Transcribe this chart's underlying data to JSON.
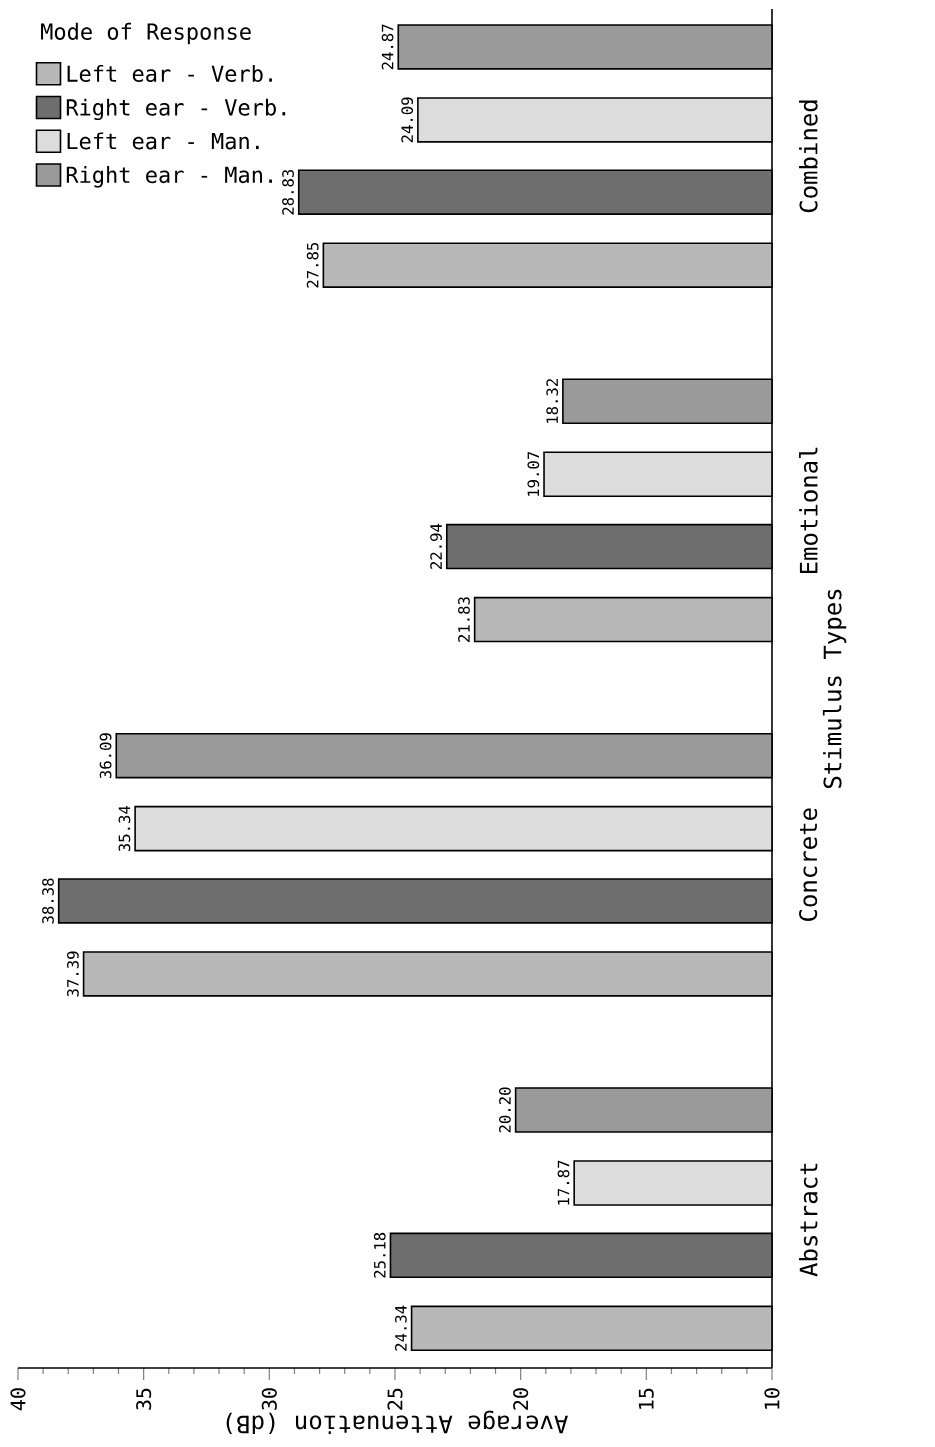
{
  "chart_data": {
    "type": "bar",
    "orientation": "horizontal",
    "xlabel": "Average Attenuation (dB)",
    "ylabel": "Stimulus Types",
    "legend_title": "Mode of Response",
    "categories": [
      "Combined",
      "Emotional",
      "Concrete",
      "Abstract"
    ],
    "series": [
      {
        "name": "Left ear - Verb.",
        "color": "#b8b8b8",
        "values": [
          27.85,
          21.83,
          37.39,
          24.34
        ],
        "value_labels": [
          "27.85",
          "21.83",
          "37.39",
          "24.34"
        ]
      },
      {
        "name": "Right ear - Verb.",
        "color": "#6e6e6e",
        "values": [
          28.83,
          22.94,
          38.38,
          25.18
        ],
        "value_labels": [
          "28.83",
          "22.94",
          "38.38",
          "25.18"
        ]
      },
      {
        "name": "Left ear - Man.",
        "color": "#dcdcdc",
        "values": [
          24.09,
          19.07,
          35.34,
          17.87
        ],
        "value_labels": [
          "24.09",
          "19.07",
          "35.34",
          "17.87"
        ]
      },
      {
        "name": "Right ear - Man.",
        "color": "#9a9a9a",
        "values": [
          24.87,
          18.32,
          36.09,
          20.2
        ],
        "value_labels": [
          "24.87",
          "18.32",
          "36.09",
          "20.20"
        ]
      }
    ],
    "xlim": [
      40,
      10
    ],
    "xticks": [
      40,
      35,
      30,
      25,
      20,
      15,
      10
    ],
    "legend": "top left",
    "grid": false
  }
}
